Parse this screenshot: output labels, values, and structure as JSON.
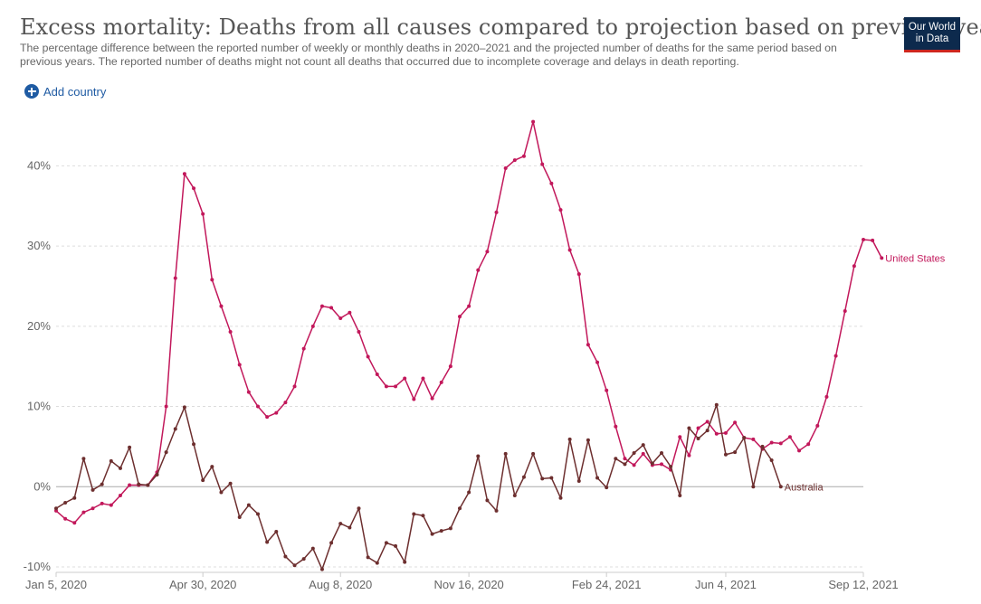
{
  "header": {
    "title": "Excess mortality: Deaths from all causes compared to projection based on previous years",
    "subtitle": "The percentage difference between the reported number of weekly or monthly deaths in 2020–2021 and the projected number of deaths for the same period based on previous years. The reported number of deaths might not count all deaths that occurred due to incomplete coverage and delays in death reporting.",
    "logo_line1": "Our World",
    "logo_line2": "in Data"
  },
  "controls": {
    "add_country_label": "Add country"
  },
  "colors": {
    "united_states": "#c2185b",
    "australia": "#6d2f2f",
    "grid": "#dddddd",
    "zero_line": "#aaaaaa"
  },
  "chart_data": {
    "type": "line",
    "title": "Excess mortality: Deaths from all causes compared to projection based on previous years",
    "xlabel": "",
    "ylabel": "",
    "x_unit": "week index starting Jan 5, 2020",
    "xlim": [
      0,
      88
    ],
    "ylim": [
      -10,
      45
    ],
    "grid": true,
    "y_ticks": [
      -10,
      0,
      10,
      20,
      30,
      40
    ],
    "y_tick_labels": [
      "-10%",
      "0%",
      "10%",
      "20%",
      "30%",
      "40%"
    ],
    "x_ticks": [
      0,
      16,
      31,
      45,
      60,
      73,
      88
    ],
    "x_tick_labels": [
      "Jan 5, 2020",
      "Apr 30, 2020",
      "Aug 8, 2020",
      "Nov 16, 2020",
      "Feb 24, 2021",
      "Jun 4, 2021",
      "Sep 12, 2021"
    ],
    "series": [
      {
        "name": "United States",
        "values": [
          -3,
          -4,
          -4.5,
          -3.2,
          -2.7,
          -2.1,
          -2.3,
          -1.1,
          0.2,
          0.2,
          0.2,
          1.8,
          10,
          26,
          39,
          37.2,
          34,
          25.8,
          22.5,
          19.3,
          15.2,
          11.8,
          10,
          8.7,
          9.2,
          10.5,
          12.5,
          17.2,
          20,
          22.5,
          22.3,
          21,
          21.7,
          19.3,
          16.2,
          14,
          12.5,
          12.5,
          13.5,
          10.9,
          13.5,
          11,
          13,
          15,
          21.2,
          22.5,
          27,
          29.3,
          34.2,
          39.7,
          40.7,
          41.2,
          45.5,
          40.2,
          37.8,
          34.5,
          29.5,
          26.5,
          17.7,
          15.5,
          12,
          7.5,
          3.5,
          2.7,
          4.1,
          2.7,
          2.8,
          2.1,
          6.2,
          3.9,
          7.3,
          8.1,
          6.6,
          6.7,
          8,
          6.1,
          5.9,
          4.7,
          5.5,
          5.4,
          6.2,
          4.5,
          5.3,
          7.6,
          11.2,
          16.3,
          21.9,
          27.5,
          30.8,
          30.7,
          28.5
        ]
      },
      {
        "name": "Australia",
        "values": [
          -2.7,
          -2,
          -1.4,
          3.5,
          -0.4,
          0.3,
          3.2,
          2.3,
          4.9,
          0.3,
          0.2,
          1.5,
          4.3,
          7.2,
          9.9,
          5.3,
          0.8,
          2.5,
          -0.7,
          0.4,
          -3.8,
          -2.3,
          -3.4,
          -6.9,
          -5.6,
          -8.7,
          -9.8,
          -9,
          -7.7,
          -10.3,
          -7,
          -4.6,
          -5.1,
          -2.7,
          -8.8,
          -9.5,
          -7,
          -7.4,
          -9.4,
          -3.4,
          -3.6,
          -5.9,
          -5.5,
          -5.2,
          -2.7,
          -0.7,
          3.8,
          -1.7,
          -3,
          4.1,
          -1.1,
          1.2,
          4.1,
          1,
          1.1,
          -1.4,
          5.9,
          0.7,
          5.8,
          1.1,
          -0.1,
          3.5,
          2.8,
          4.2,
          5.2,
          2.9,
          4.2,
          2.5,
          -1.1,
          7.3,
          6,
          7,
          10.2,
          4,
          4.3,
          6.1,
          0,
          5,
          3.3,
          0
        ]
      }
    ]
  }
}
